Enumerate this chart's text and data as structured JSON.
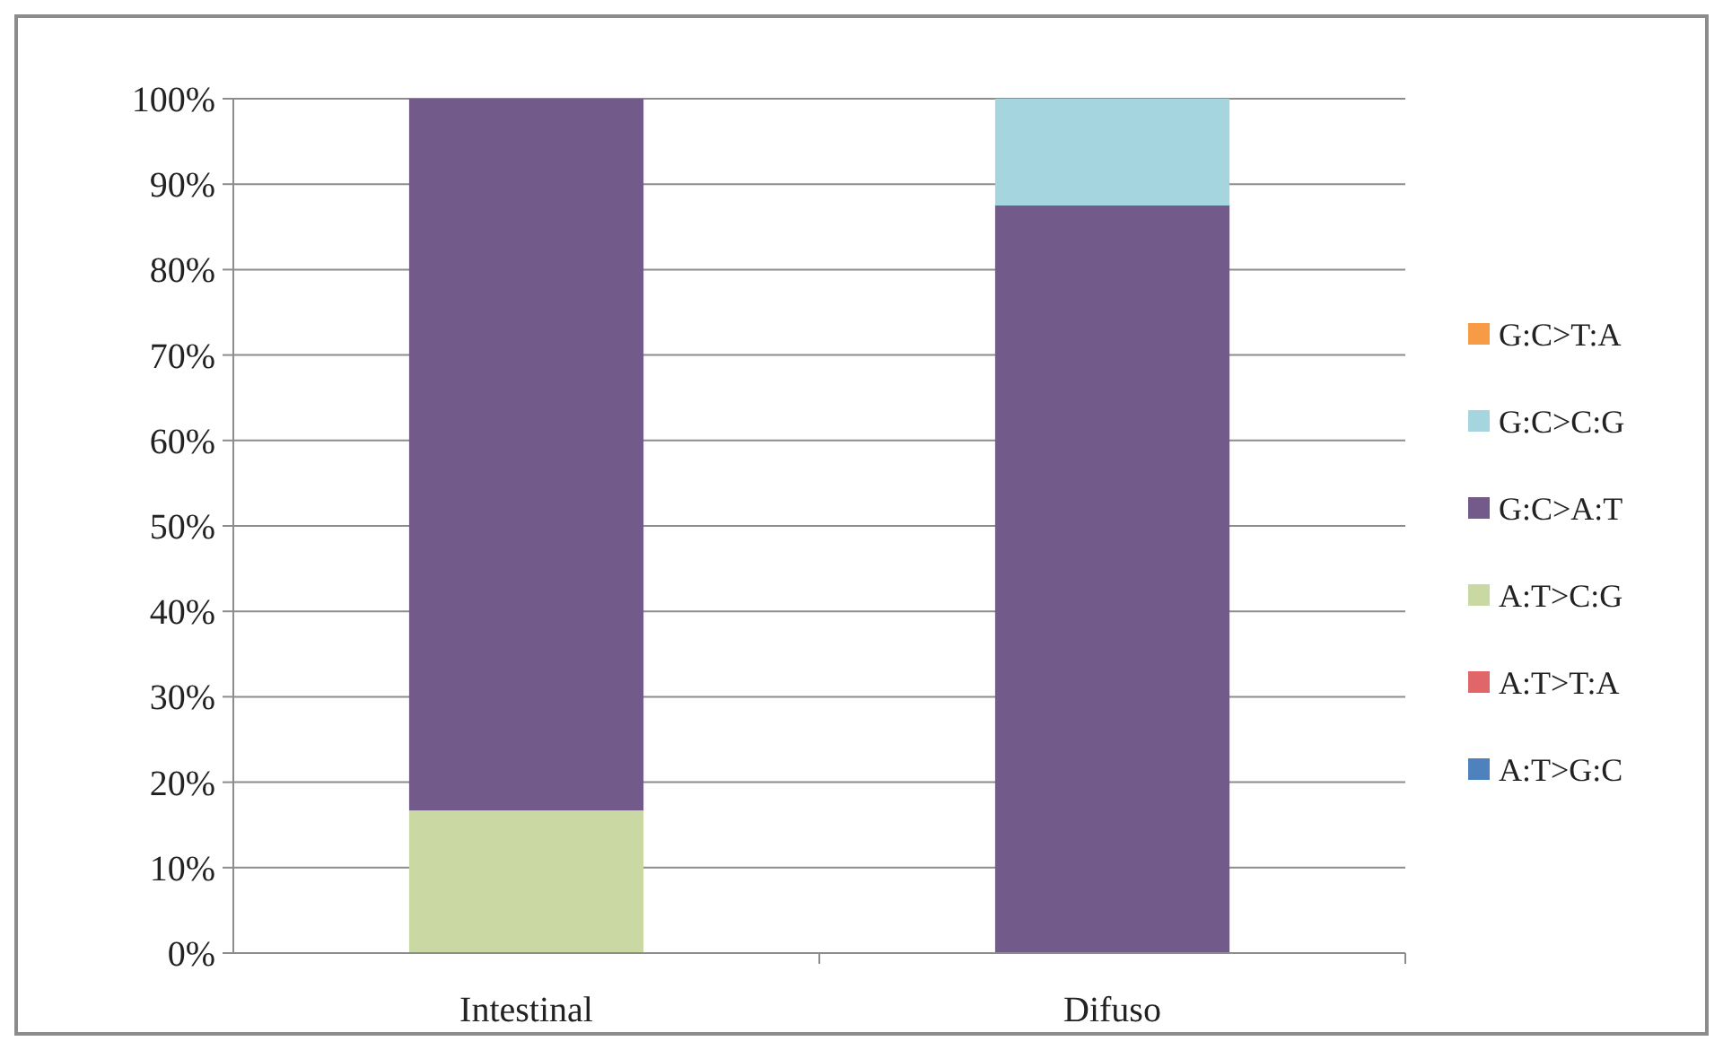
{
  "chart_data": {
    "type": "bar",
    "stacked": true,
    "categories": [
      "Intestinal",
      "Difuso"
    ],
    "series": [
      {
        "name": "A:T>G:C",
        "color": "#4f81bd",
        "values": [
          0,
          0
        ]
      },
      {
        "name": "A:T>T:A",
        "color": "#e0666a",
        "values": [
          0,
          0
        ]
      },
      {
        "name": "A:T>C:G",
        "color": "#cad9a4",
        "values": [
          16.7,
          0
        ]
      },
      {
        "name": "G:C>A:T",
        "color": "#725b8b",
        "values": [
          83.3,
          87.5
        ]
      },
      {
        "name": "G:C>C:G",
        "color": "#a5d6e0",
        "values": [
          0,
          12.5
        ]
      },
      {
        "name": "G:C>T:A",
        "color": "#f79b46",
        "values": [
          0,
          0
        ]
      }
    ],
    "ylim": [
      0,
      100
    ],
    "yticks": [
      {
        "value": 0,
        "label": "0%"
      },
      {
        "value": 10,
        "label": "10%"
      },
      {
        "value": 20,
        "label": "20%"
      },
      {
        "value": 30,
        "label": "30%"
      },
      {
        "value": 40,
        "label": "40%"
      },
      {
        "value": 50,
        "label": "50%"
      },
      {
        "value": 60,
        "label": "60%"
      },
      {
        "value": 70,
        "label": "70%"
      },
      {
        "value": 80,
        "label": "80%"
      },
      {
        "value": 90,
        "label": "90%"
      },
      {
        "value": 100,
        "label": "100%"
      }
    ],
    "grid": "y",
    "legend": "right"
  }
}
